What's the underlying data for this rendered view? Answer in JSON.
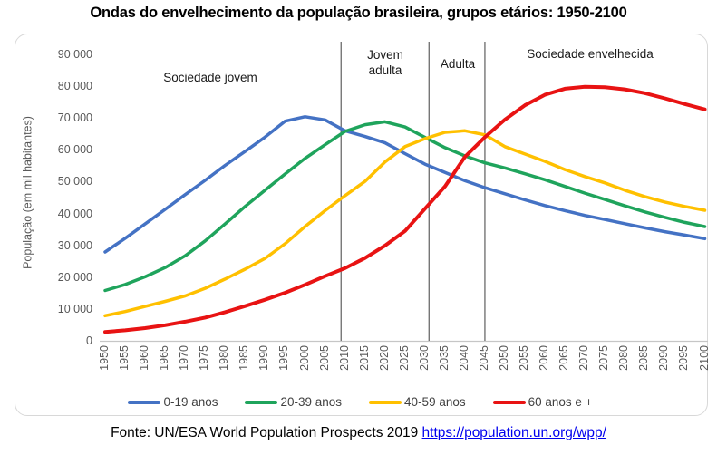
{
  "title": "Ondas do envelhecimento da população brasileira, grupos etários: 1950-2100",
  "footer": {
    "prefix": "Fonte: UN/ESA World Population Prospects 2019 ",
    "link_text": "https://population.un.org/wpp/",
    "link_color": "#0563C1"
  },
  "chart_data": {
    "type": "line",
    "title": "Ondas do envelhecimento da população brasileira, grupos etários: 1950-2100",
    "xlabel": "",
    "ylabel": "População (em mil habitantes)",
    "ylim": [
      0,
      90000
    ],
    "grid": false,
    "legend_position": "bottom",
    "x": [
      1950,
      1955,
      1960,
      1965,
      1970,
      1975,
      1980,
      1985,
      1990,
      1995,
      2000,
      2005,
      2010,
      2015,
      2020,
      2025,
      2030,
      2035,
      2040,
      2045,
      2050,
      2055,
      2060,
      2065,
      2070,
      2075,
      2080,
      2085,
      2090,
      2095,
      2100
    ],
    "x_labels": [
      "1950",
      "1955",
      "1960",
      "1965",
      "1970",
      "1975",
      "1980",
      "1985",
      "1990",
      "1995",
      "2000",
      "2005",
      "2010",
      "2015",
      "2020",
      "2025",
      "2030",
      "2035",
      "2040",
      "2045",
      "2050",
      "2055",
      "2060",
      "2065",
      "2070",
      "2075",
      "2080",
      "2085",
      "2090",
      "2095",
      "2100"
    ],
    "y_tick_labels": [
      "0",
      "10 000",
      "20 000",
      "30 000",
      "40 000",
      "50 000",
      "60 000",
      "70 000",
      "80 000",
      "90 000"
    ],
    "series": [
      {
        "name": "0-19 anos",
        "color": "#4472C4",
        "width": 3.5,
        "values": [
          27900,
          32200,
          36700,
          41300,
          45900,
          50400,
          55100,
          59500,
          64000,
          69000,
          70400,
          69400,
          66000,
          64200,
          62200,
          58800,
          55500,
          52900,
          50300,
          48100,
          46200,
          44300,
          42500,
          40900,
          39400,
          38100,
          36800,
          35500,
          34300,
          33200,
          32100
        ]
      },
      {
        "name": "20-39 anos",
        "color": "#1FA45C",
        "width": 3.5,
        "values": [
          15800,
          17700,
          20100,
          23000,
          26700,
          31400,
          36700,
          42200,
          47300,
          52400,
          57300,
          61600,
          65800,
          67900,
          68800,
          67200,
          63900,
          60700,
          58100,
          55900,
          54300,
          52500,
          50600,
          48500,
          46400,
          44400,
          42400,
          40500,
          38800,
          37200,
          35900
        ]
      },
      {
        "name": "40-59 anos",
        "color": "#FFC000",
        "width": 3.5,
        "values": [
          7900,
          9200,
          10800,
          12400,
          14100,
          16500,
          19400,
          22500,
          25900,
          30500,
          35900,
          40900,
          45600,
          50100,
          56200,
          61000,
          63500,
          65500,
          66000,
          64700,
          61000,
          58700,
          56400,
          53800,
          51600,
          49600,
          47300,
          45300,
          43600,
          42200,
          41000
        ]
      },
      {
        "name": "60 anos e +",
        "color": "#E81313",
        "width": 4,
        "values": [
          2800,
          3300,
          4000,
          4900,
          6000,
          7300,
          9000,
          10900,
          12900,
          15100,
          17600,
          20300,
          22800,
          26000,
          29900,
          34500,
          41500,
          48500,
          57800,
          64000,
          69500,
          74000,
          77300,
          79200,
          79800,
          79700,
          79000,
          77800,
          76200,
          74400,
          72700
        ]
      }
    ],
    "dividers": {
      "years": [
        2009,
        2031,
        2045
      ],
      "color": "#3f3f3f"
    },
    "regions": [
      {
        "line1": "Sociedade jovem"
      },
      {
        "line1": "Jovem",
        "line2": "adulta"
      },
      {
        "line1": "Adulta"
      },
      {
        "line1": "Sociedade envelhecida"
      }
    ]
  }
}
